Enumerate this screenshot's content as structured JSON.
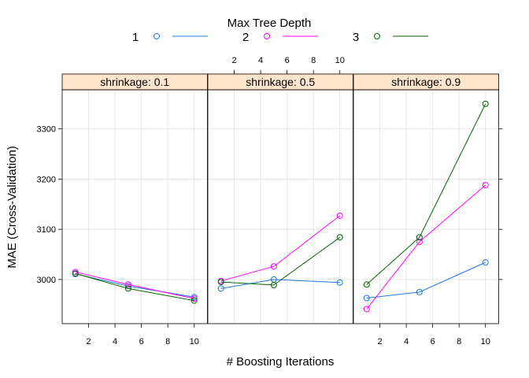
{
  "chart_data": {
    "type": "line",
    "legend": {
      "title": "Max Tree Depth",
      "placement": "top",
      "entries": [
        {
          "label": "1",
          "color": "#1F77E0"
        },
        {
          "label": "2",
          "color": "#FF00FF"
        },
        {
          "label": "3",
          "color": "#006400"
        }
      ]
    },
    "xlabel": "# Boosting Iterations",
    "ylabel": "MAE (Cross-Validation)",
    "x": [
      1,
      5,
      10
    ],
    "xlim": [
      0.0,
      11.0
    ],
    "ylim": [
      2912,
      3378
    ],
    "xticks": [
      2,
      4,
      6,
      8,
      10
    ],
    "yticks": [
      3000,
      3100,
      3200,
      3300
    ],
    "grid": true,
    "strip_color": "#FFE5CC",
    "panels": [
      {
        "strip": "shrinkage: 0.1",
        "series": [
          {
            "name": "1",
            "values": [
              3011,
              2987,
              2965
            ]
          },
          {
            "name": "2",
            "values": [
              3015,
              2990,
              2962
            ]
          },
          {
            "name": "3",
            "values": [
              3012,
              2982,
              2958
            ]
          }
        ]
      },
      {
        "strip": "shrinkage: 0.5",
        "series": [
          {
            "name": "1",
            "values": [
              2982,
              3000,
              2994
            ]
          },
          {
            "name": "2",
            "values": [
              2997,
              3026,
              3127
            ]
          },
          {
            "name": "3",
            "values": [
              2995,
              2989,
              3084
            ]
          }
        ]
      },
      {
        "strip": "shrinkage: 0.9",
        "series": [
          {
            "name": "1",
            "values": [
              2963,
              2975,
              3034
            ]
          },
          {
            "name": "2",
            "values": [
              2941,
              3075,
              3188
            ]
          },
          {
            "name": "3",
            "values": [
              2990,
              3084,
              3350
            ]
          }
        ]
      }
    ]
  }
}
